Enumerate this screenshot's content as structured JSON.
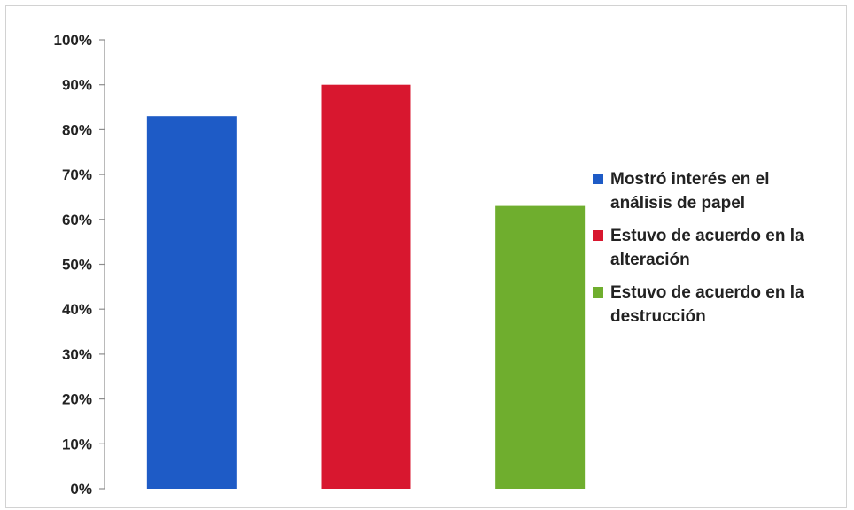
{
  "chart_data": {
    "type": "bar",
    "title": "",
    "xlabel": "",
    "ylabel": "",
    "ylim": [
      0,
      100
    ],
    "y_tick_labels": [
      "0%",
      "10%",
      "20%",
      "30%",
      "40%",
      "50%",
      "60%",
      "70%",
      "80%",
      "90%",
      "100%"
    ],
    "categories": [
      "Mostró interés en el análisis de papel",
      "Estuvo de acuerdo en la alteración",
      "Estuvo de acuerdo en la destrucción"
    ],
    "values": [
      83,
      90,
      63
    ],
    "colors": [
      "#1e5bc6",
      "#d8172f",
      "#6fae2e"
    ],
    "grid": false,
    "legend_position": "right",
    "legend": [
      {
        "lines": [
          "Mostró interés en el",
          "análisis de papel"
        ],
        "color": "#1e5bc6"
      },
      {
        "lines": [
          "Estuvo de acuerdo en la",
          "alteración"
        ],
        "color": "#d8172f"
      },
      {
        "lines": [
          "Estuvo de acuerdo en la",
          "destrucción"
        ],
        "color": "#6fae2e"
      }
    ]
  }
}
